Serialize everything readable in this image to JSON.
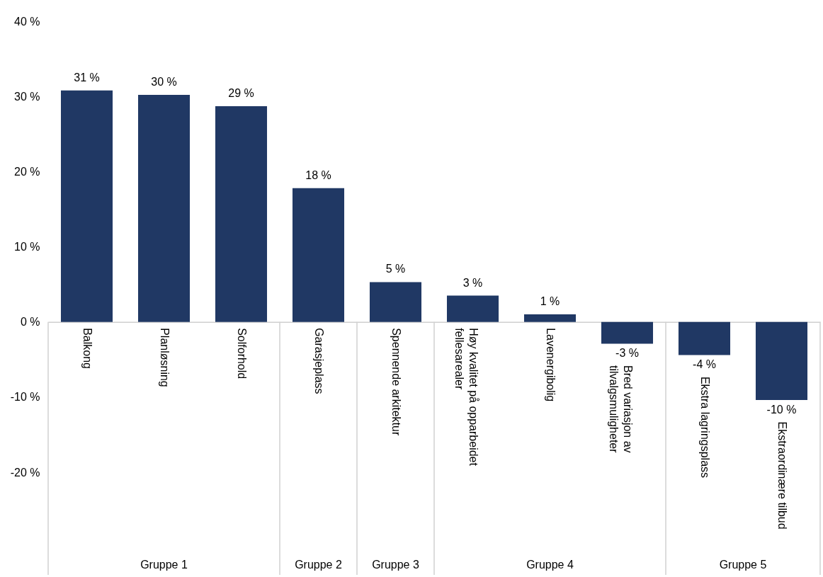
{
  "chart_data": {
    "type": "bar",
    "categories": [
      "Balkong",
      "Planløsning",
      "Solforhold",
      "Garasjeplass",
      "Spennende arkitektur",
      "Høy kvalitet på opparbeidet fellesarealer",
      "Lavenergibolig",
      "Bred variasjon av tilvalgsmuligheter",
      "Ekstra lagringsplass",
      "Ekstraordinære tilbud"
    ],
    "values": [
      30.8,
      30.2,
      28.7,
      17.8,
      5.3,
      3.5,
      1.0,
      -2.9,
      -4.4,
      -10.4
    ],
    "value_labels": [
      "31 %",
      "30 %",
      "29 %",
      "18 %",
      "5 %",
      "3 %",
      "1 %",
      "-3 %",
      "-4 %",
      "-10 %"
    ],
    "color": "#203864",
    "ylim": [
      -20,
      40
    ],
    "yticks": [
      {
        "value": -20,
        "label": "-20 %"
      },
      {
        "value": -10,
        "label": "-10 %"
      },
      {
        "value": 0,
        "label": "0 %"
      },
      {
        "value": 10,
        "label": "10 %"
      },
      {
        "value": 20,
        "label": "20 %"
      },
      {
        "value": 30,
        "label": "30 %"
      },
      {
        "value": 40,
        "label": "40 %"
      }
    ],
    "annotations": [
      "Gruppe 1",
      "Gruppe 2",
      "Gruppe 3",
      "Gruppe 4",
      "Gruppe 5"
    ],
    "grid": false
  }
}
